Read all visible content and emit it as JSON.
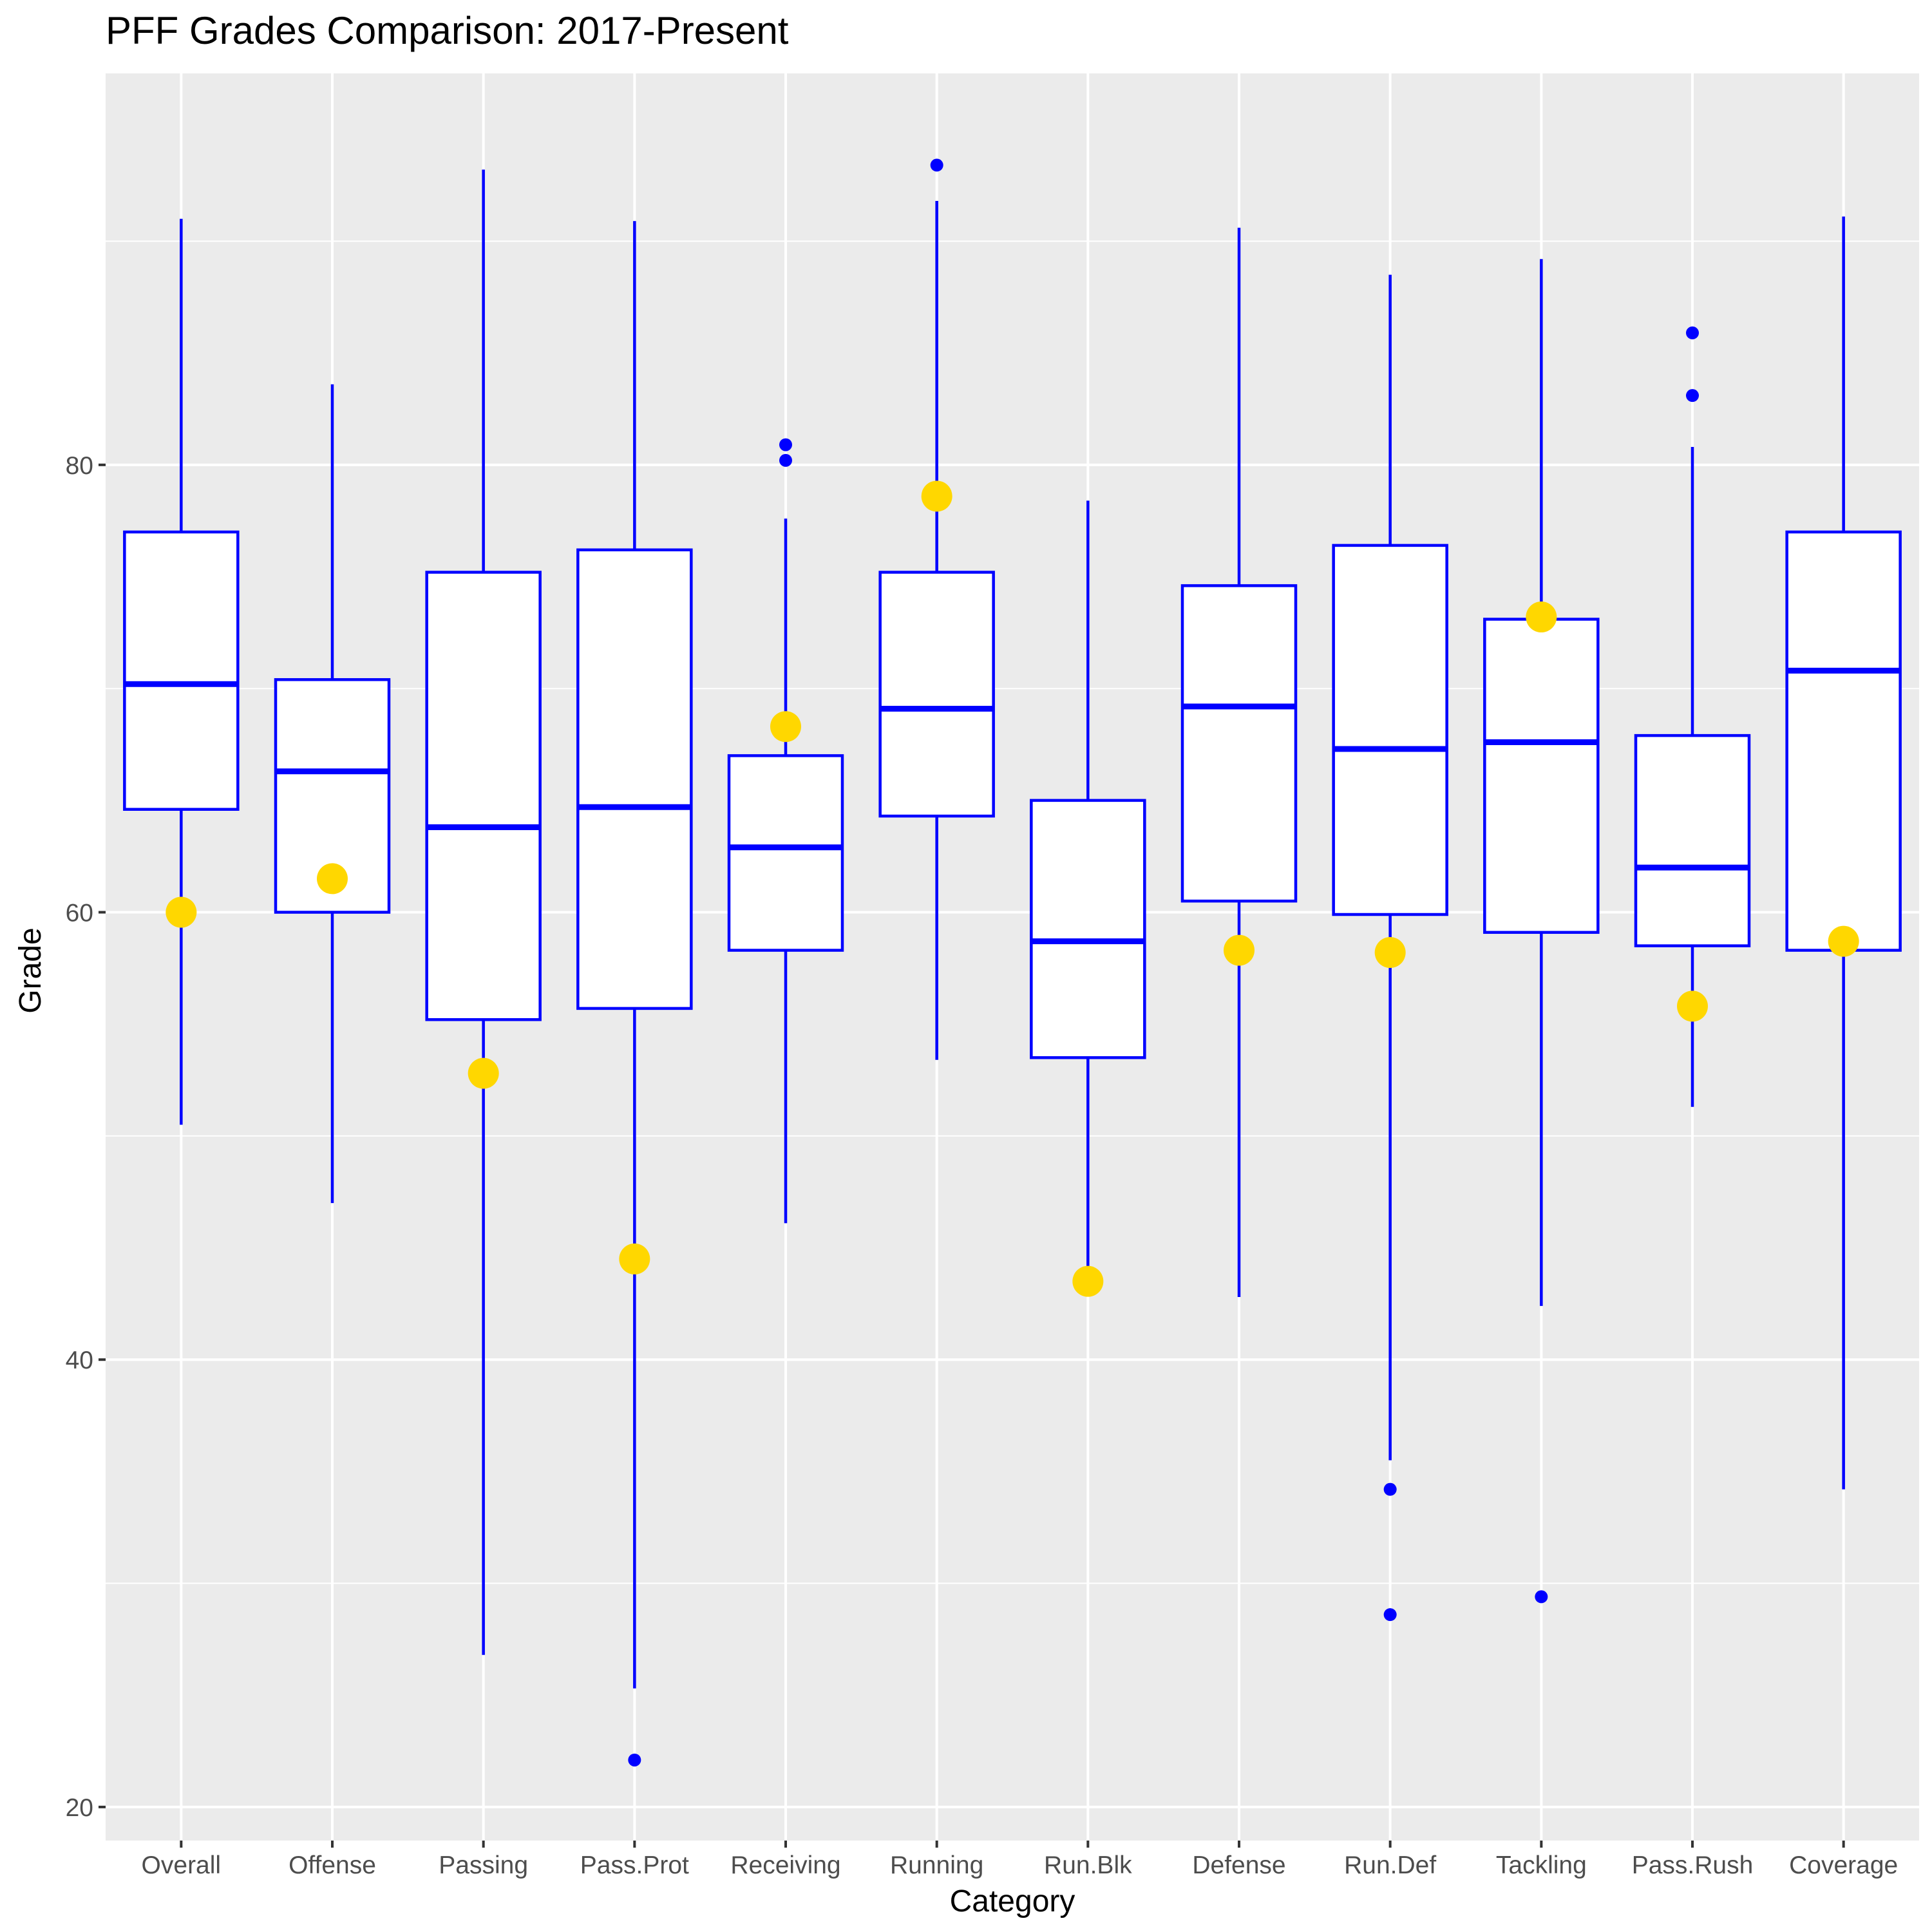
{
  "chart_data": {
    "type": "boxplot",
    "title": "PFF Grades Comparison: 2017-Present",
    "xlabel": "Category",
    "ylabel": "Grade",
    "ylim": [
      18.5,
      97.5
    ],
    "y_ticks": [
      20,
      40,
      60,
      80
    ],
    "y_minor_ticks": [
      30,
      50,
      70,
      90
    ],
    "grid": true,
    "legend": "none",
    "colors": {
      "panel_background": "#EBEBEB",
      "grid": "#FFFFFF",
      "box_outline": "#0000FF",
      "box_fill": "#FFFFFF",
      "outlier": "#0000FF",
      "highlight_point": "#FFD700",
      "tick_text": "#4D4D4D",
      "tick_mark": "#333333"
    },
    "categories": [
      "Overall",
      "Offense",
      "Passing",
      "Pass.Prot",
      "Receiving",
      "Running",
      "Run.Blk",
      "Defense",
      "Run.Def",
      "Tackling",
      "Pass.Rush",
      "Coverage"
    ],
    "boxes": [
      {
        "category": "Overall",
        "whisker_low": 50.5,
        "q1": 64.6,
        "median": 70.2,
        "q3": 77.0,
        "whisker_high": 91.0,
        "outliers": []
      },
      {
        "category": "Offense",
        "whisker_low": 47.0,
        "q1": 60.0,
        "median": 66.3,
        "q3": 70.4,
        "whisker_high": 83.6,
        "outliers": []
      },
      {
        "category": "Passing",
        "whisker_low": 26.8,
        "q1": 55.2,
        "median": 63.8,
        "q3": 75.2,
        "whisker_high": 93.2,
        "outliers": []
      },
      {
        "category": "Pass.Prot",
        "whisker_low": 25.3,
        "q1": 55.7,
        "median": 64.7,
        "q3": 76.2,
        "whisker_high": 90.9,
        "outliers": [
          22.1
        ]
      },
      {
        "category": "Receiving",
        "whisker_low": 46.1,
        "q1": 58.3,
        "median": 62.9,
        "q3": 67.0,
        "whisker_high": 77.6,
        "outliers": [
          80.2,
          80.9
        ]
      },
      {
        "category": "Running",
        "whisker_low": 53.4,
        "q1": 64.3,
        "median": 69.1,
        "q3": 75.2,
        "whisker_high": 91.8,
        "outliers": [
          93.4
        ]
      },
      {
        "category": "Run.Blk",
        "whisker_low": 43.4,
        "q1": 53.5,
        "median": 58.7,
        "q3": 65.0,
        "whisker_high": 78.4,
        "outliers": []
      },
      {
        "category": "Defense",
        "whisker_low": 42.8,
        "q1": 60.5,
        "median": 69.2,
        "q3": 74.6,
        "whisker_high": 90.6,
        "outliers": []
      },
      {
        "category": "Run.Def",
        "whisker_low": 35.5,
        "q1": 59.9,
        "median": 67.3,
        "q3": 76.4,
        "whisker_high": 88.5,
        "outliers": [
          34.2,
          28.6
        ]
      },
      {
        "category": "Tackling",
        "whisker_low": 42.4,
        "q1": 59.1,
        "median": 67.6,
        "q3": 73.1,
        "whisker_high": 89.2,
        "outliers": [
          29.4
        ]
      },
      {
        "category": "Pass.Rush",
        "whisker_low": 51.3,
        "q1": 58.5,
        "median": 62.0,
        "q3": 67.9,
        "whisker_high": 80.8,
        "outliers": [
          83.1,
          85.9
        ]
      },
      {
        "category": "Coverage",
        "whisker_low": 34.2,
        "q1": 58.3,
        "median": 70.8,
        "q3": 77.0,
        "whisker_high": 91.1,
        "outliers": []
      }
    ],
    "highlight_points": [
      {
        "category": "Overall",
        "value": 60.0
      },
      {
        "category": "Offense",
        "value": 61.5
      },
      {
        "category": "Passing",
        "value": 52.8
      },
      {
        "category": "Pass.Prot",
        "value": 44.5
      },
      {
        "category": "Receiving",
        "value": 68.3
      },
      {
        "category": "Running",
        "value": 78.6
      },
      {
        "category": "Run.Blk",
        "value": 43.5
      },
      {
        "category": "Defense",
        "value": 58.3
      },
      {
        "category": "Run.Def",
        "value": 58.2
      },
      {
        "category": "Tackling",
        "value": 73.2
      },
      {
        "category": "Pass.Rush",
        "value": 55.8
      },
      {
        "category": "Coverage",
        "value": 58.7
      }
    ]
  }
}
